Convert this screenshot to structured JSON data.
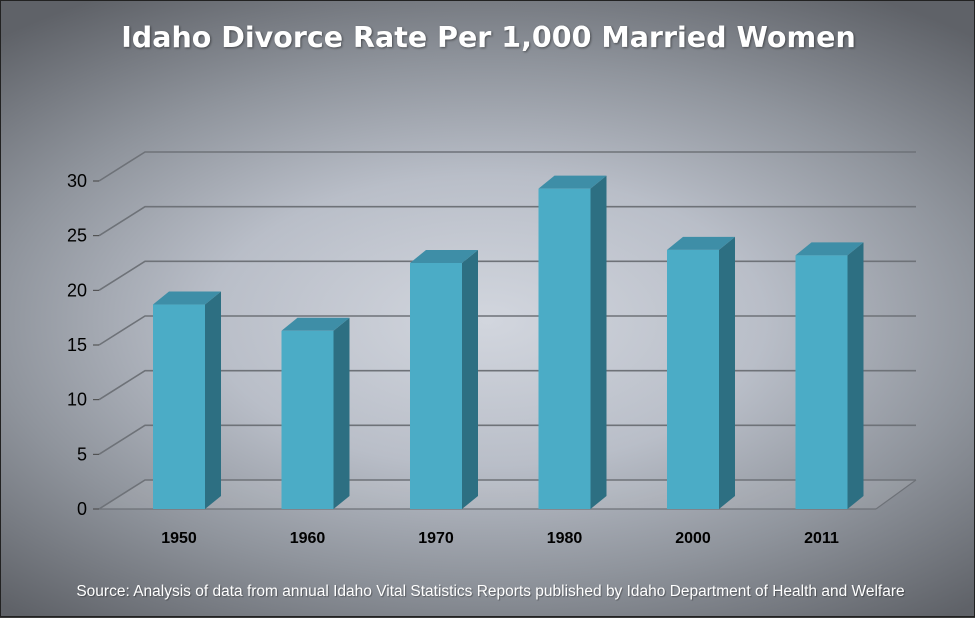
{
  "chart_data": {
    "type": "bar",
    "title": "Idaho Divorce Rate Per 1,000 Married Women",
    "categories": [
      "1950",
      "1960",
      "1970",
      "1980",
      "2000",
      "2011"
    ],
    "values": [
      18.7,
      16.3,
      22.5,
      29.3,
      23.7,
      23.2
    ],
    "ylim": [
      0,
      30
    ],
    "yticks": [
      0,
      5,
      10,
      15,
      20,
      25,
      30
    ],
    "xlabel": "",
    "ylabel": "",
    "grid": true,
    "style": "3d-column",
    "note": "Source: Analysis of data from annual Idaho Vital Statistics Reports published by Idaho Department of Health and Welfare"
  },
  "colors": {
    "bar_front": "#4bacc6",
    "bar_top": "#3e8ea7",
    "bar_side": "#2d6f82",
    "gridline": "#6e7278",
    "title_text": "#ffffff"
  }
}
